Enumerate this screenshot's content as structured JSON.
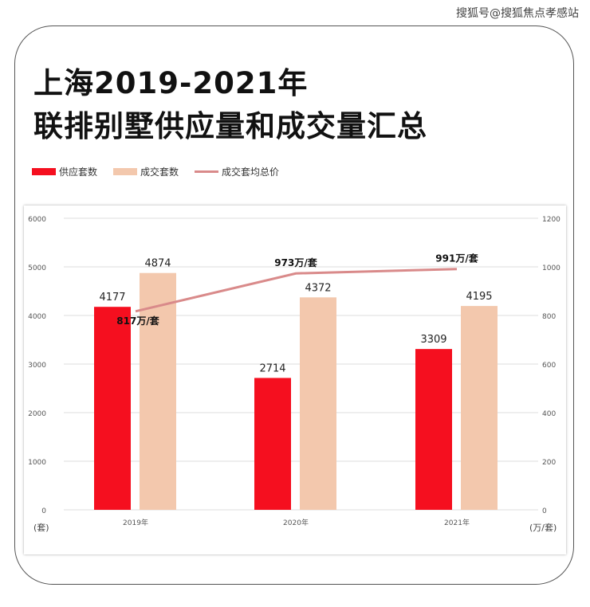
{
  "watermark": "搜狐号@搜狐焦点孝感站",
  "title_line1": "上海2019-2021年",
  "title_line2": "联排别墅供应量和成交量汇总",
  "chart_data": {
    "type": "bar",
    "categories": [
      "2019年",
      "2020年",
      "2021年"
    ],
    "series": [
      {
        "name": "供应套数",
        "kind": "bar",
        "axis": "left",
        "color": "#f50f1f",
        "values": [
          4177,
          2714,
          3309
        ]
      },
      {
        "name": "成交套数",
        "kind": "bar",
        "axis": "left",
        "color": "#f3c8ad",
        "values": [
          4874,
          4372,
          4195
        ]
      },
      {
        "name": "成交套均总价",
        "kind": "line",
        "axis": "right",
        "color": "#d98a8a",
        "values": [
          817,
          973,
          991
        ],
        "labels": [
          "817万/套",
          "973万/套",
          "991万/套"
        ]
      }
    ],
    "ylim": [
      0,
      6000
    ],
    "yticks": [
      0,
      1000,
      2000,
      3000,
      4000,
      5000,
      6000
    ],
    "y2lim": [
      0,
      1200
    ],
    "y2ticks": [
      0,
      200,
      400,
      600,
      800,
      1000,
      1200
    ],
    "ylabel": "(套)",
    "y2label": "(万/套)",
    "legend_position": "top-left",
    "grid": true
  }
}
